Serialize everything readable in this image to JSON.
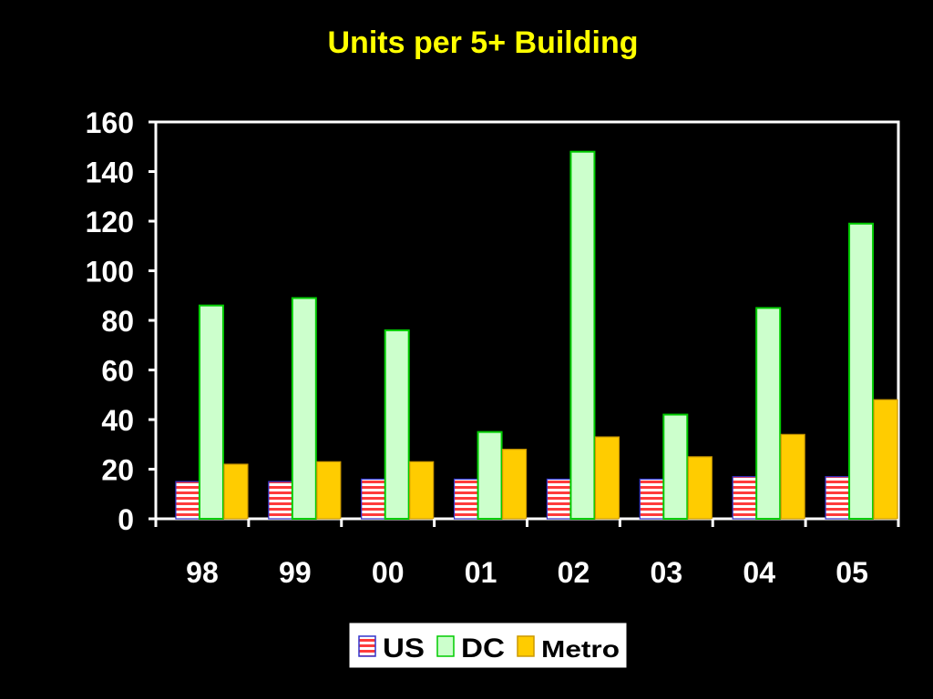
{
  "chart_data": {
    "type": "bar",
    "title": "Units per 5+ Building",
    "xlabel": "",
    "ylabel": "",
    "categories": [
      "98",
      "99",
      "00",
      "01",
      "02",
      "03",
      "04",
      "05"
    ],
    "ylim": [
      0,
      160
    ],
    "yticks": [
      "0",
      "20",
      "40",
      "60",
      "80",
      "100",
      "120",
      "140",
      "160"
    ],
    "grid": false,
    "legend_position": "bottom",
    "series": [
      {
        "name": "US",
        "values": [
          15,
          15,
          16,
          16,
          16,
          16,
          17,
          17
        ],
        "color": "#ff3b3b",
        "pattern": "red-white-horizontal-stripes"
      },
      {
        "name": "DC",
        "values": [
          86,
          89,
          76,
          35,
          148,
          42,
          85,
          119
        ],
        "color": "#ccffcc",
        "border": "#00cc00"
      },
      {
        "name": "Metro",
        "values": [
          22,
          23,
          23,
          28,
          33,
          25,
          34,
          48
        ],
        "color": "#ffcc00",
        "border": "#cc9900"
      }
    ],
    "background": "#000000",
    "axis_color": "#ffffff",
    "title_color": "#ffff00"
  }
}
